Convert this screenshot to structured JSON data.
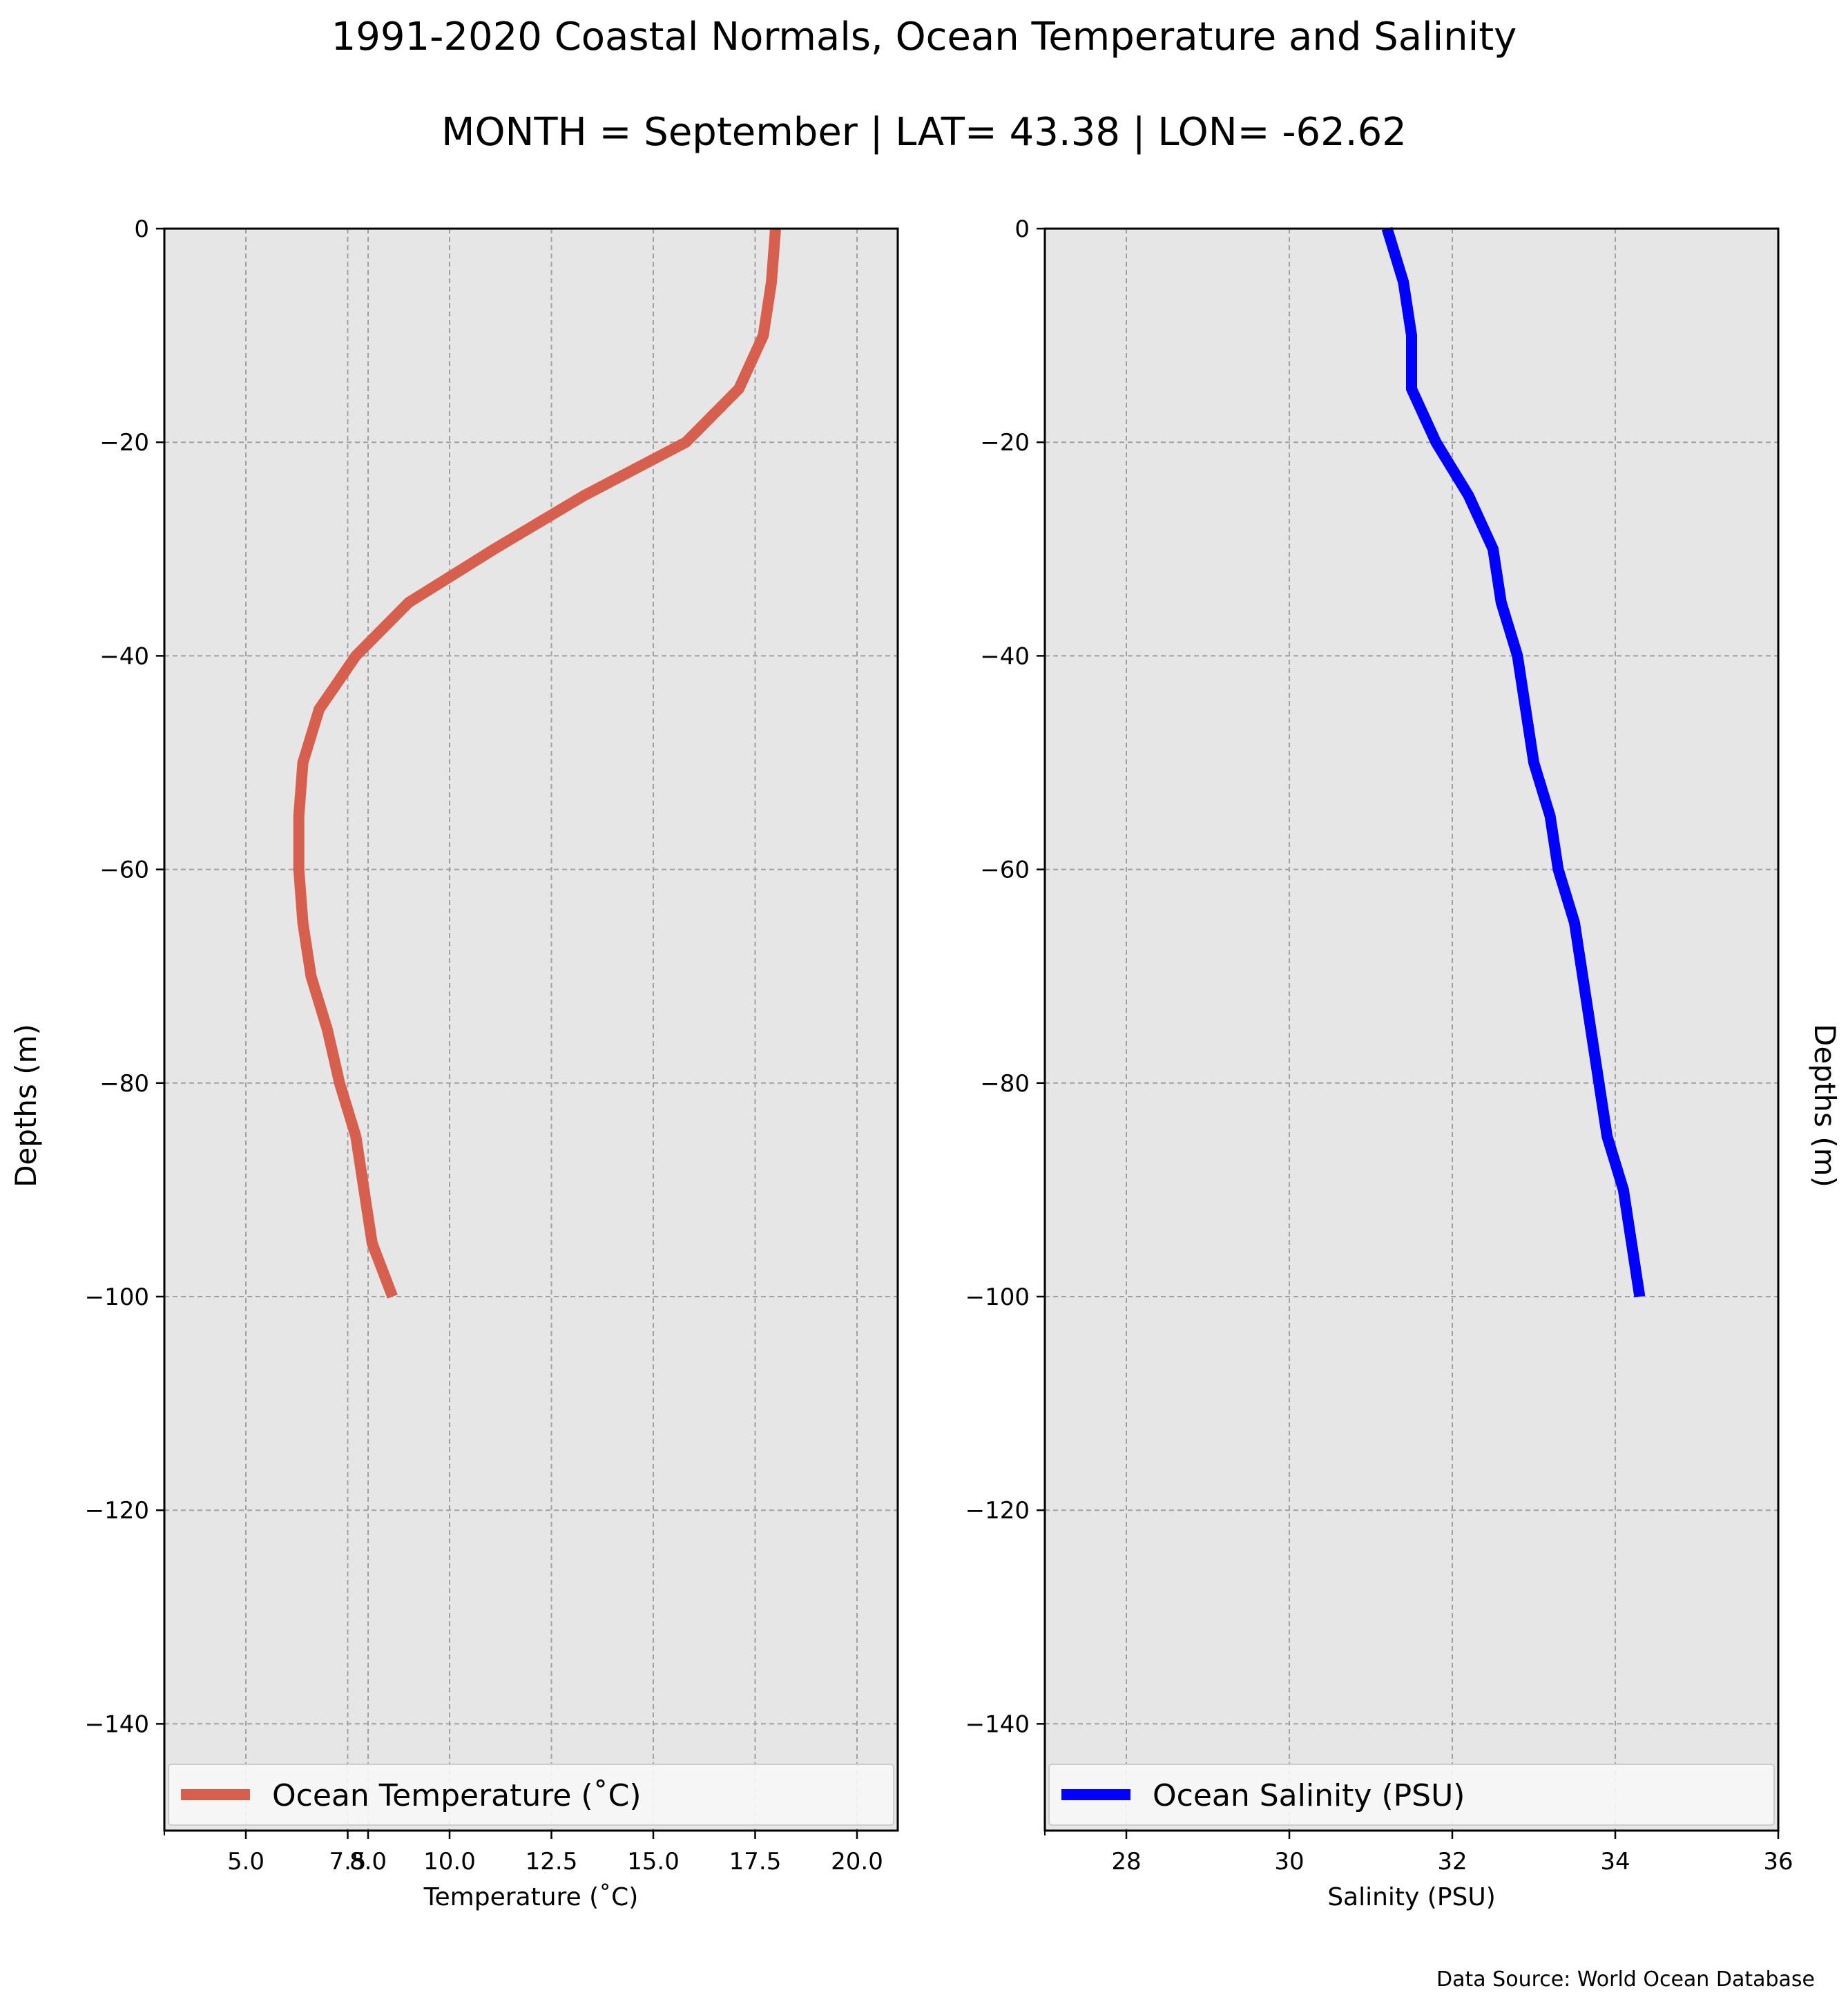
{
  "title": "1991-2020 Coastal Normals, Ocean Temperature and Salinity",
  "subtitle": "MONTH = September | LAT= 43.38 | LON= -62.62",
  "source": "Data Source: World Ocean Database",
  "colors": {
    "background": "#ffffff",
    "plot_bg": "#e6e6e6",
    "grid": "#a0a0a0",
    "temperature": "#d6604d",
    "salinity": "#0000ff"
  },
  "chart_data": [
    {
      "type": "line",
      "xlabel": "Temperature ($^\\circ$C)",
      "xlabel_display": "Temperature (˚C)",
      "ylabel": "Depths (m)",
      "xlim": [
        3.0,
        21.0
      ],
      "ylim": [
        -150,
        0
      ],
      "xticks": [
        5.0,
        7.5,
        8.0,
        10.0,
        12.5,
        15.0,
        17.5,
        20.0
      ],
      "xtick_labels": [
        "5.0",
        "7.5",
        "8.0",
        "10.0",
        "12.5",
        "15.0",
        "17.5",
        "20.0"
      ],
      "yticks": [
        0,
        -20,
        -40,
        -60,
        -80,
        -100,
        -120,
        -140
      ],
      "ytick_labels": [
        "0",
        "−20",
        "−40",
        "−60",
        "−80",
        "−100",
        "−120",
        "−140"
      ],
      "grid": true,
      "legend_position": "lower-left",
      "series": [
        {
          "name": "Ocean Temperature (˚C)",
          "color": "#d6604d",
          "x": [
            18.0,
            17.9,
            17.7,
            17.1,
            15.8,
            13.3,
            11.1,
            9.0,
            7.7,
            6.8,
            6.4,
            6.3,
            6.3,
            6.4,
            6.6,
            7.0,
            7.3,
            7.7,
            7.9,
            8.1,
            8.6
          ],
          "y": [
            0,
            -5,
            -10,
            -15,
            -20,
            -25,
            -30,
            -35,
            -40,
            -45,
            -50,
            -55,
            -60,
            -65,
            -70,
            -75,
            -80,
            -85,
            -90,
            -95,
            -100
          ]
        }
      ]
    },
    {
      "type": "line",
      "xlabel": "Salinity (PSU)",
      "ylabel": "Depths (m)",
      "xlim": [
        27,
        36
      ],
      "ylim": [
        -150,
        0
      ],
      "xticks": [
        28,
        30,
        32,
        34,
        36
      ],
      "xtick_labels": [
        "28",
        "30",
        "32",
        "34",
        "36"
      ],
      "yticks": [
        0,
        -20,
        -40,
        -60,
        -80,
        -100,
        -120,
        -140
      ],
      "ytick_labels": [
        "0",
        "−20",
        "−40",
        "−60",
        "−80",
        "−100",
        "−120",
        "−140"
      ],
      "grid": true,
      "legend_position": "lower-left",
      "series": [
        {
          "name": "Ocean Salinity (PSU)",
          "color": "#0000ff",
          "x": [
            31.2,
            31.4,
            31.5,
            31.5,
            31.8,
            32.2,
            32.5,
            32.6,
            32.8,
            32.9,
            33.0,
            33.2,
            33.3,
            33.5,
            33.6,
            33.7,
            33.8,
            33.9,
            34.1,
            34.2,
            34.3
          ],
          "y": [
            0,
            -5,
            -10,
            -15,
            -20,
            -25,
            -30,
            -35,
            -40,
            -45,
            -50,
            -55,
            -60,
            -65,
            -70,
            -75,
            -80,
            -85,
            -90,
            -95,
            -100
          ]
        }
      ]
    }
  ]
}
